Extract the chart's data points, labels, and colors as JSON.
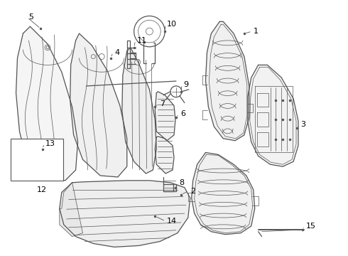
{
  "bg_color": "#ffffff",
  "line_color": "#555555",
  "label_color": "#000000",
  "label_fontsize": 8,
  "figsize": [
    4.9,
    3.6
  ],
  "dpi": 100
}
